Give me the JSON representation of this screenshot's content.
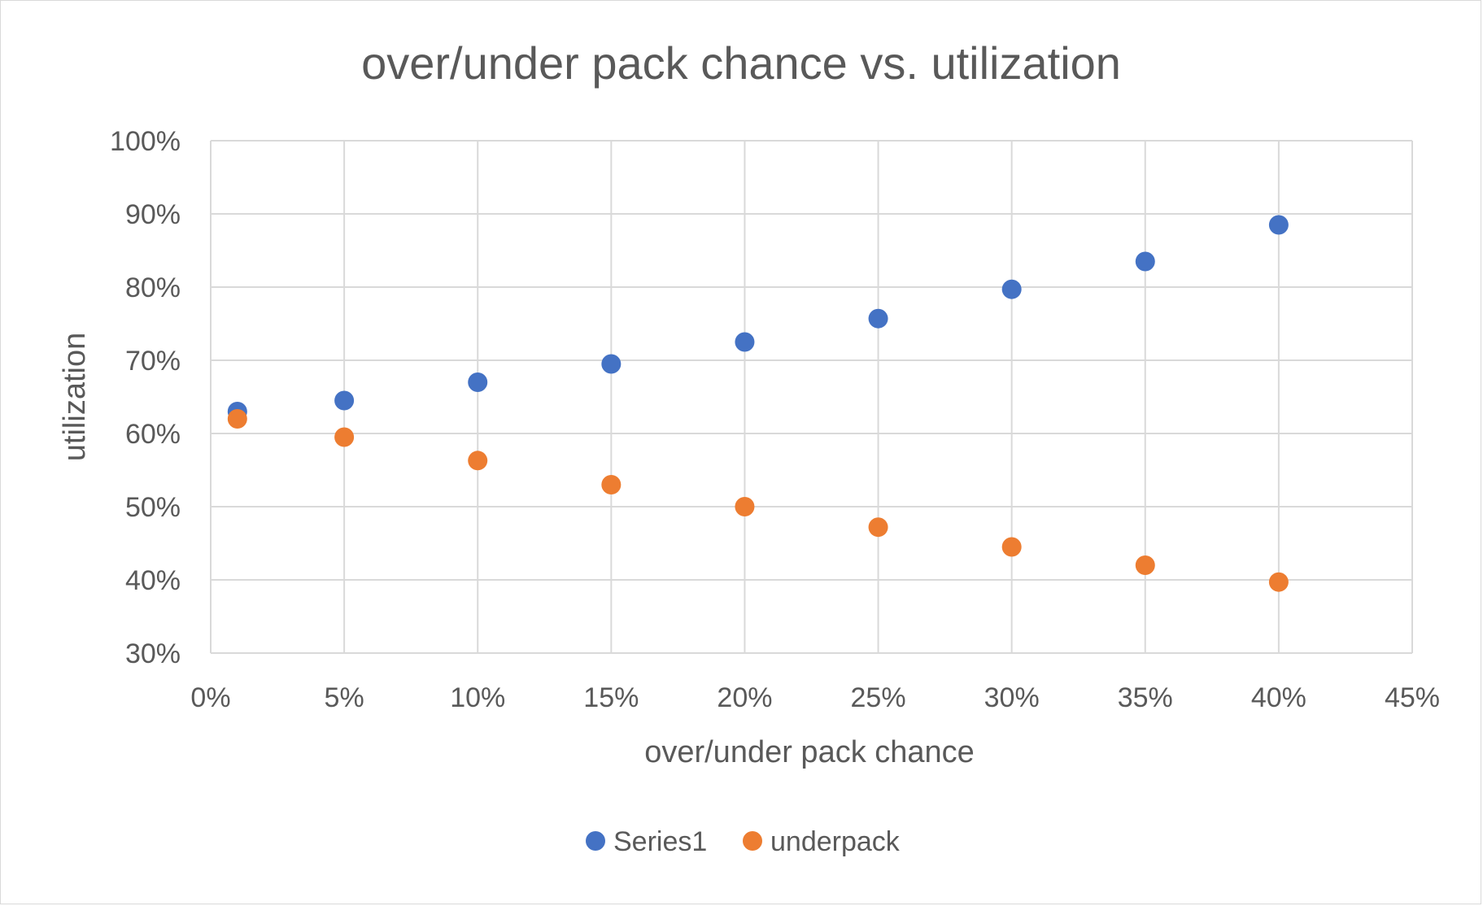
{
  "chart_data": {
    "type": "scatter",
    "title": "over/under pack chance vs. utilization",
    "xlabel": "over/under pack chance",
    "ylabel": "utilization",
    "xlim": [
      0,
      0.45
    ],
    "ylim": [
      0.3,
      1.0
    ],
    "x_ticks": [
      0,
      0.05,
      0.1,
      0.15,
      0.2,
      0.25,
      0.3,
      0.35,
      0.4,
      0.45
    ],
    "x_tick_labels": [
      "0%",
      "5%",
      "10%",
      "15%",
      "20%",
      "25%",
      "30%",
      "35%",
      "40%",
      "45%"
    ],
    "y_ticks": [
      0.3,
      0.4,
      0.5,
      0.6,
      0.7,
      0.8,
      0.9,
      1.0
    ],
    "y_tick_labels": [
      "30%",
      "40%",
      "50%",
      "60%",
      "70%",
      "80%",
      "90%",
      "100%"
    ],
    "grid": true,
    "legend_position": "bottom",
    "series": [
      {
        "name": "Series1",
        "color": "#4472c4",
        "x": [
          0.01,
          0.05,
          0.1,
          0.15,
          0.2,
          0.25,
          0.3,
          0.35,
          0.4
        ],
        "y": [
          0.63,
          0.645,
          0.67,
          0.695,
          0.725,
          0.757,
          0.797,
          0.835,
          0.885
        ]
      },
      {
        "name": "underpack",
        "color": "#ed7d31",
        "x": [
          0.01,
          0.05,
          0.1,
          0.15,
          0.2,
          0.25,
          0.3,
          0.35,
          0.4
        ],
        "y": [
          0.62,
          0.595,
          0.563,
          0.53,
          0.5,
          0.472,
          0.445,
          0.42,
          0.397
        ]
      }
    ]
  }
}
